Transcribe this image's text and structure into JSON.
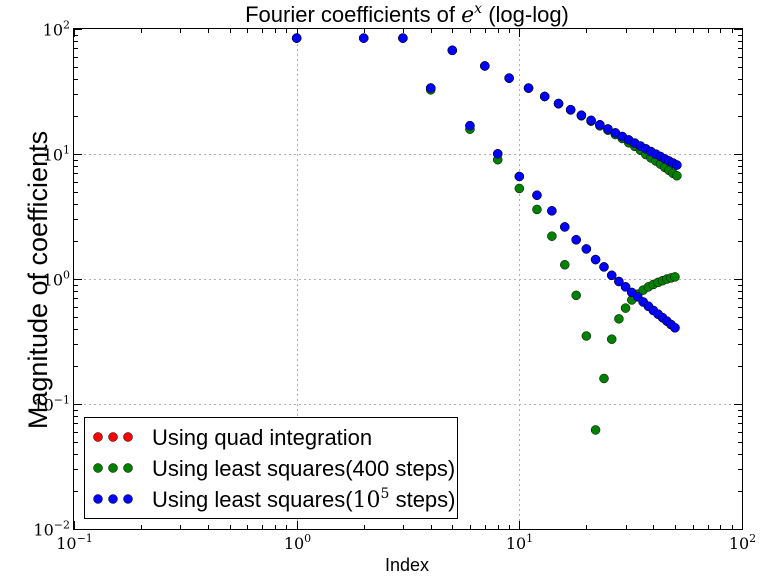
{
  "chart_data": {
    "type": "scatter",
    "title": "Fourier coefficients of e^x (log-log)",
    "title_parts": {
      "prefix": "Fourier coefficients of ",
      "base": "e",
      "sup": "x",
      "suffix": " (log-log)"
    },
    "xlabel": "Index",
    "ylabel": "Magnitude of coefficients",
    "xscale": "log",
    "yscale": "log",
    "xlim": [
      0.1,
      100
    ],
    "ylim": [
      0.01,
      100
    ],
    "grid": true,
    "legend_position": "bottom-left",
    "x_ticks": [
      {
        "value": 0.1,
        "base": "10",
        "exp": "−1"
      },
      {
        "value": 1,
        "base": "10",
        "exp": "0"
      },
      {
        "value": 10,
        "base": "10",
        "exp": "1"
      },
      {
        "value": 100,
        "base": "10",
        "exp": "2"
      }
    ],
    "y_ticks": [
      {
        "value": 0.01,
        "base": "10",
        "exp": "−2"
      },
      {
        "value": 0.1,
        "base": "10",
        "exp": "−1"
      },
      {
        "value": 1,
        "base": "10",
        "exp": "0"
      },
      {
        "value": 10,
        "base": "10",
        "exp": "1"
      },
      {
        "value": 100,
        "base": "10",
        "exp": "2"
      }
    ],
    "series": [
      {
        "name": "Using quad integration",
        "legend_parts": {
          "prefix": "Using quad integration",
          "base": "",
          "sup": "",
          "suffix": ""
        },
        "color": "#ff0000",
        "x": [
          1,
          2,
          3,
          4,
          5,
          6,
          7,
          8,
          9,
          10,
          11,
          12,
          13,
          14,
          15,
          16,
          17,
          18,
          19,
          20,
          21,
          22,
          23,
          24,
          25,
          26,
          27,
          28,
          29,
          30,
          31,
          32,
          33,
          34,
          35,
          36,
          37,
          38,
          39,
          40,
          41,
          42,
          43,
          44,
          45,
          46,
          47,
          48,
          49,
          50,
          51
        ],
        "y": [
          84.55,
          84.55,
          84.55,
          33.73,
          67.52,
          16.84,
          50.63,
          10.03,
          40.48,
          6.61,
          33.71,
          4.68,
          28.88,
          3.51,
          25.35,
          2.61,
          22.62,
          2.06,
          20.42,
          1.74,
          18.58,
          1.43,
          17.13,
          1.25,
          15.86,
          1.07,
          14.75,
          0.955,
          13.8,
          0.865,
          12.96,
          0.78,
          12.22,
          0.72,
          11.58,
          0.655,
          10.99,
          0.605,
          10.46,
          0.56,
          9.98,
          0.523,
          9.55,
          0.49,
          9.15,
          0.46,
          8.79,
          0.432,
          8.46,
          0.407,
          8.16
        ]
      },
      {
        "name": "Using least squares(400 steps)",
        "legend_parts": {
          "prefix": "Using least squares(400 steps)",
          "base": "",
          "sup": "",
          "suffix": ""
        },
        "color": "#008000",
        "x": [
          1,
          2,
          3,
          4,
          5,
          6,
          7,
          8,
          9,
          10,
          11,
          12,
          13,
          14,
          15,
          16,
          17,
          18,
          19,
          20,
          21,
          22,
          23,
          24,
          25,
          26,
          27,
          28,
          29,
          30,
          31,
          32,
          33,
          34,
          35,
          36,
          37,
          38,
          39,
          40,
          41,
          42,
          43,
          44,
          45,
          46,
          47,
          48,
          49,
          50,
          51
        ],
        "y": [
          84.55,
          84.55,
          84.55,
          32.6,
          67.5,
          15.8,
          50.6,
          9.0,
          40.4,
          5.3,
          33.6,
          3.6,
          28.8,
          2.2,
          25.2,
          1.3,
          22.5,
          0.74,
          20.2,
          0.35,
          18.3,
          0.062,
          16.8,
          0.16,
          15.5,
          0.33,
          14.3,
          0.48,
          13.3,
          0.585,
          12.3,
          0.68,
          11.5,
          0.755,
          10.7,
          0.815,
          9.9,
          0.865,
          9.3,
          0.905,
          8.8,
          0.94,
          8.3,
          0.97,
          7.8,
          1.0,
          7.4,
          1.02,
          7.0,
          1.04,
          6.7
        ]
      },
      {
        "name": "Using least squares(10^5 steps)",
        "legend_parts": {
          "prefix": "Using least squares(",
          "base": "10",
          "sup": "5",
          "suffix": " steps)"
        },
        "color": "#0000ff",
        "x": [
          1,
          2,
          3,
          4,
          5,
          6,
          7,
          8,
          9,
          10,
          11,
          12,
          13,
          14,
          15,
          16,
          17,
          18,
          19,
          20,
          21,
          22,
          23,
          24,
          25,
          26,
          27,
          28,
          29,
          30,
          31,
          32,
          33,
          34,
          35,
          36,
          37,
          38,
          39,
          40,
          41,
          42,
          43,
          44,
          45,
          46,
          47,
          48,
          49,
          50,
          51
        ],
        "y": [
          84.55,
          84.55,
          84.55,
          33.73,
          67.52,
          16.84,
          50.63,
          10.03,
          40.48,
          6.61,
          33.71,
          4.68,
          28.88,
          3.51,
          25.35,
          2.61,
          22.62,
          2.06,
          20.42,
          1.74,
          18.58,
          1.43,
          17.13,
          1.25,
          15.86,
          1.07,
          14.75,
          0.955,
          13.8,
          0.865,
          12.96,
          0.78,
          12.22,
          0.72,
          11.58,
          0.655,
          10.99,
          0.605,
          10.46,
          0.56,
          9.98,
          0.523,
          9.55,
          0.49,
          9.15,
          0.46,
          8.79,
          0.432,
          8.46,
          0.407,
          8.16
        ]
      }
    ]
  }
}
